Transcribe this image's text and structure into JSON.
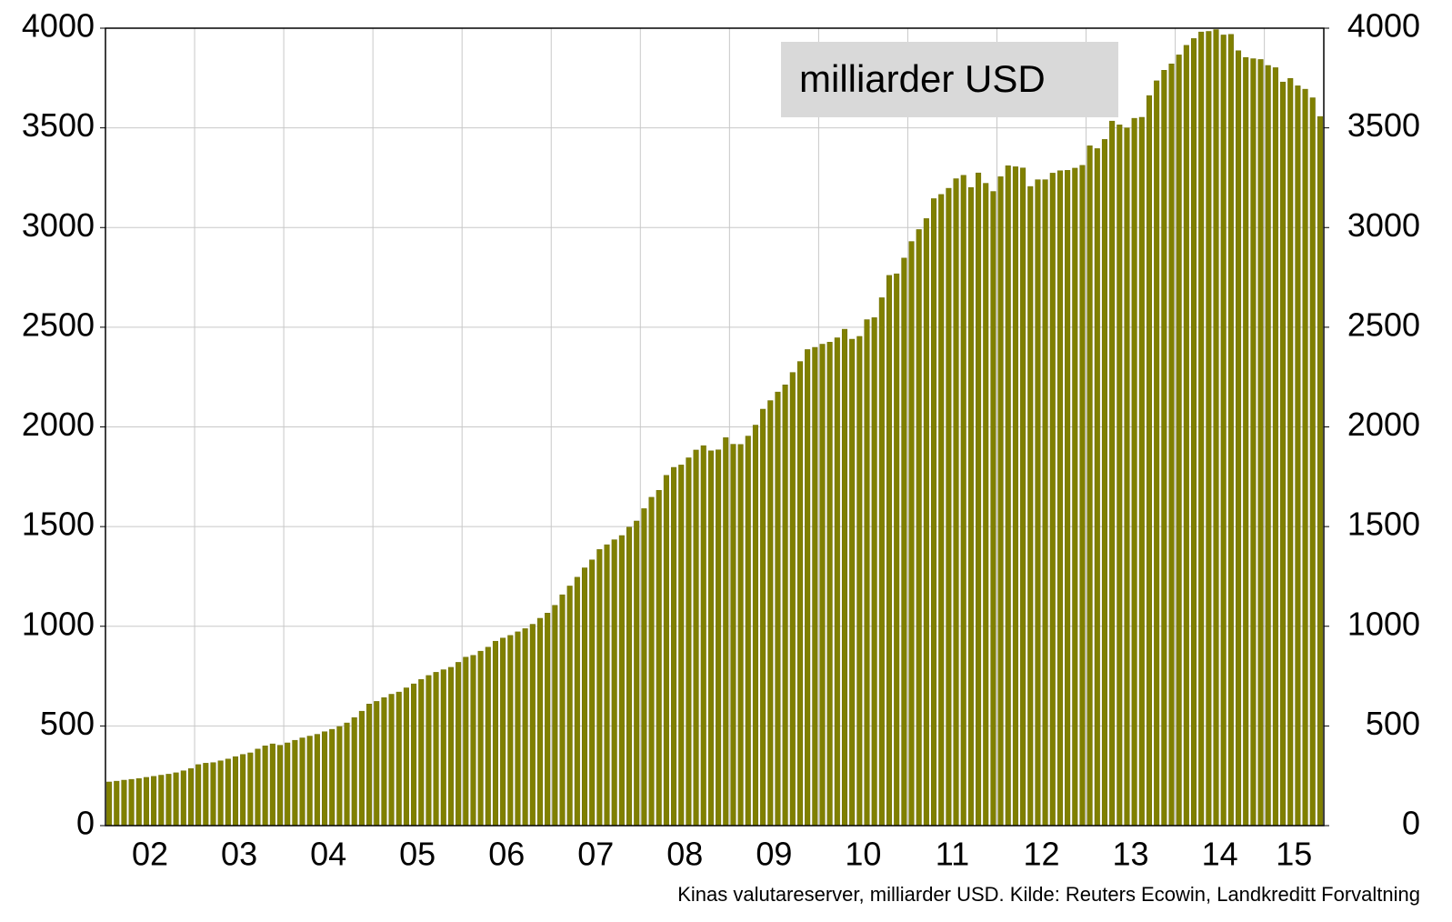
{
  "chart_data": {
    "type": "bar",
    "annotation": "milliarder USD",
    "caption": "Kinas valutareserver, milliarder USD. Kilde: Reuters Ecowin, Landkreditt Forvaltning",
    "categories": [
      "02",
      null,
      null,
      null,
      null,
      null,
      null,
      null,
      null,
      null,
      null,
      null,
      "03",
      null,
      null,
      null,
      null,
      null,
      null,
      null,
      null,
      null,
      null,
      null,
      "04",
      null,
      null,
      null,
      null,
      null,
      null,
      null,
      null,
      null,
      null,
      null,
      "05",
      null,
      null,
      null,
      null,
      null,
      null,
      null,
      null,
      null,
      null,
      null,
      "06",
      null,
      null,
      null,
      null,
      null,
      null,
      null,
      null,
      null,
      null,
      null,
      "07",
      null,
      null,
      null,
      null,
      null,
      null,
      null,
      null,
      null,
      null,
      null,
      "08",
      null,
      null,
      null,
      null,
      null,
      null,
      null,
      null,
      null,
      null,
      null,
      "09",
      null,
      null,
      null,
      null,
      null,
      null,
      null,
      null,
      null,
      null,
      null,
      "10",
      null,
      null,
      null,
      null,
      null,
      null,
      null,
      null,
      null,
      null,
      null,
      "11",
      null,
      null,
      null,
      null,
      null,
      null,
      null,
      null,
      null,
      null,
      null,
      "12",
      null,
      null,
      null,
      null,
      null,
      null,
      null,
      null,
      null,
      null,
      null,
      "13",
      null,
      null,
      null,
      null,
      null,
      null,
      null,
      null,
      null,
      null,
      null,
      "14",
      null,
      null,
      null,
      null,
      null,
      null,
      null,
      null,
      null,
      null,
      null,
      "15",
      null,
      null,
      null,
      null,
      null,
      null,
      null
    ],
    "values": [
      219,
      223,
      228,
      232,
      236,
      242,
      247,
      253,
      258,
      265,
      275,
      286,
      306,
      313,
      316,
      325,
      334,
      346,
      357,
      365,
      384,
      400,
      410,
      403,
      415,
      428,
      440,
      449,
      458,
      471,
      483,
      497,
      515,
      542,
      574,
      610,
      623,
      642,
      659,
      670,
      691,
      711,
      733,
      753,
      769,
      782,
      794,
      819,
      845,
      854,
      875,
      895,
      925,
      941,
      954,
      972,
      988,
      1010,
      1040,
      1066,
      1105,
      1158,
      1202,
      1246,
      1293,
      1333,
      1385,
      1409,
      1434,
      1455,
      1497,
      1528,
      1590,
      1647,
      1682,
      1757,
      1797,
      1809,
      1845,
      1884,
      1906,
      1880,
      1885,
      1946,
      1913,
      1912,
      1954,
      2009,
      2089,
      2132,
      2175,
      2211,
      2273,
      2328,
      2388,
      2399,
      2415,
      2425,
      2447,
      2490,
      2440,
      2454,
      2538,
      2548,
      2648,
      2760,
      2768,
      2847,
      2930,
      2990,
      3045,
      3145,
      3166,
      3197,
      3245,
      3262,
      3201,
      3274,
      3222,
      3181,
      3255,
      3310,
      3305,
      3299,
      3206,
      3240,
      3240,
      3273,
      3285,
      3287,
      3298,
      3312,
      3410,
      3396,
      3442,
      3534,
      3515,
      3500,
      3548,
      3553,
      3662,
      3736,
      3789,
      3821,
      3866,
      3914,
      3948,
      3981,
      3984,
      3993,
      3966,
      3969,
      3887,
      3853,
      3847,
      3843,
      3813,
      3802,
      3730,
      3748,
      3711,
      3694,
      3651,
      3557
    ],
    "color": "#808000",
    "ylim": [
      0,
      4000
    ],
    "yticks": [
      0,
      500,
      1000,
      1500,
      2000,
      2500,
      3000,
      3500,
      4000
    ],
    "grid": true
  }
}
